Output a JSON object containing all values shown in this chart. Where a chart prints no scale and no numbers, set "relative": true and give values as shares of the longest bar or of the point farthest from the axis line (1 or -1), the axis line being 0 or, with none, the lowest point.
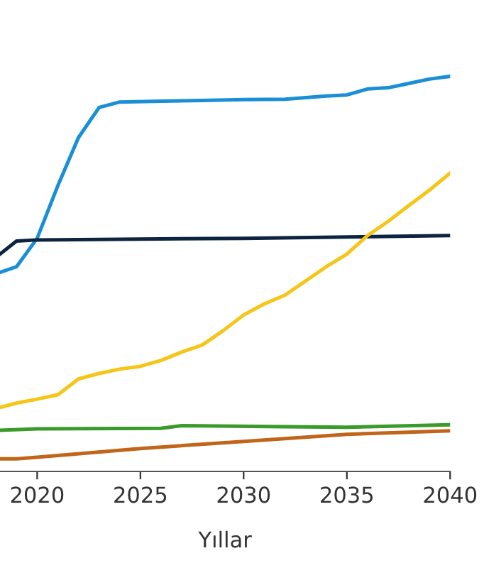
{
  "chart_data": {
    "type": "line",
    "relative": true,
    "xlabel": "Yıllar",
    "xlim": [
      2018.2,
      2040
    ],
    "xticks": [
      2020,
      2025,
      2030,
      2035,
      2040
    ],
    "legend": false,
    "grid": false,
    "marker": "none",
    "line_style": "solid",
    "series": [
      {
        "color": "#1a8fd6",
        "x": [
          2018.2,
          2019,
          2020,
          2021,
          2022,
          2023,
          2024,
          2026,
          2028,
          2030,
          2032,
          2034,
          2035,
          2036,
          2037,
          2038,
          2039,
          2040
        ],
        "values": [
          0.504,
          0.518,
          0.59,
          0.723,
          0.845,
          0.921,
          0.935,
          0.937,
          0.939,
          0.941,
          0.942,
          0.95,
          0.953,
          0.968,
          0.971,
          0.982,
          0.993,
          1
        ]
      },
      {
        "color": "#0d2440",
        "x": [
          2018.2,
          2019,
          2020,
          2030,
          2040
        ],
        "values": [
          0.55,
          0.583,
          0.586,
          0.59,
          0.597
        ]
      },
      {
        "color": "#f5c518",
        "x": [
          2018.2,
          2019,
          2020,
          2021,
          2022,
          2023,
          2024,
          2025,
          2026,
          2027,
          2028,
          2029,
          2030,
          2031,
          2032,
          2033,
          2034,
          2035,
          2036,
          2037,
          2038,
          2039,
          2040
        ],
        "values": [
          0.162,
          0.173,
          0.183,
          0.194,
          0.234,
          0.248,
          0.259,
          0.266,
          0.281,
          0.302,
          0.32,
          0.356,
          0.396,
          0.424,
          0.446,
          0.482,
          0.518,
          0.55,
          0.597,
          0.633,
          0.673,
          0.712,
          0.755
        ]
      },
      {
        "color": "#3a9a2a",
        "x": [
          2018.2,
          2020,
          2026,
          2027,
          2032,
          2035,
          2040
        ],
        "values": [
          0.104,
          0.108,
          0.109,
          0.116,
          0.113,
          0.112,
          0.118
        ]
      },
      {
        "color": "#c0651a",
        "x": [
          2018.2,
          2019,
          2020,
          2025,
          2030,
          2035,
          2040
        ],
        "values": [
          0.032,
          0.032,
          0.036,
          0.058,
          0.076,
          0.094,
          0.103
        ]
      }
    ]
  }
}
